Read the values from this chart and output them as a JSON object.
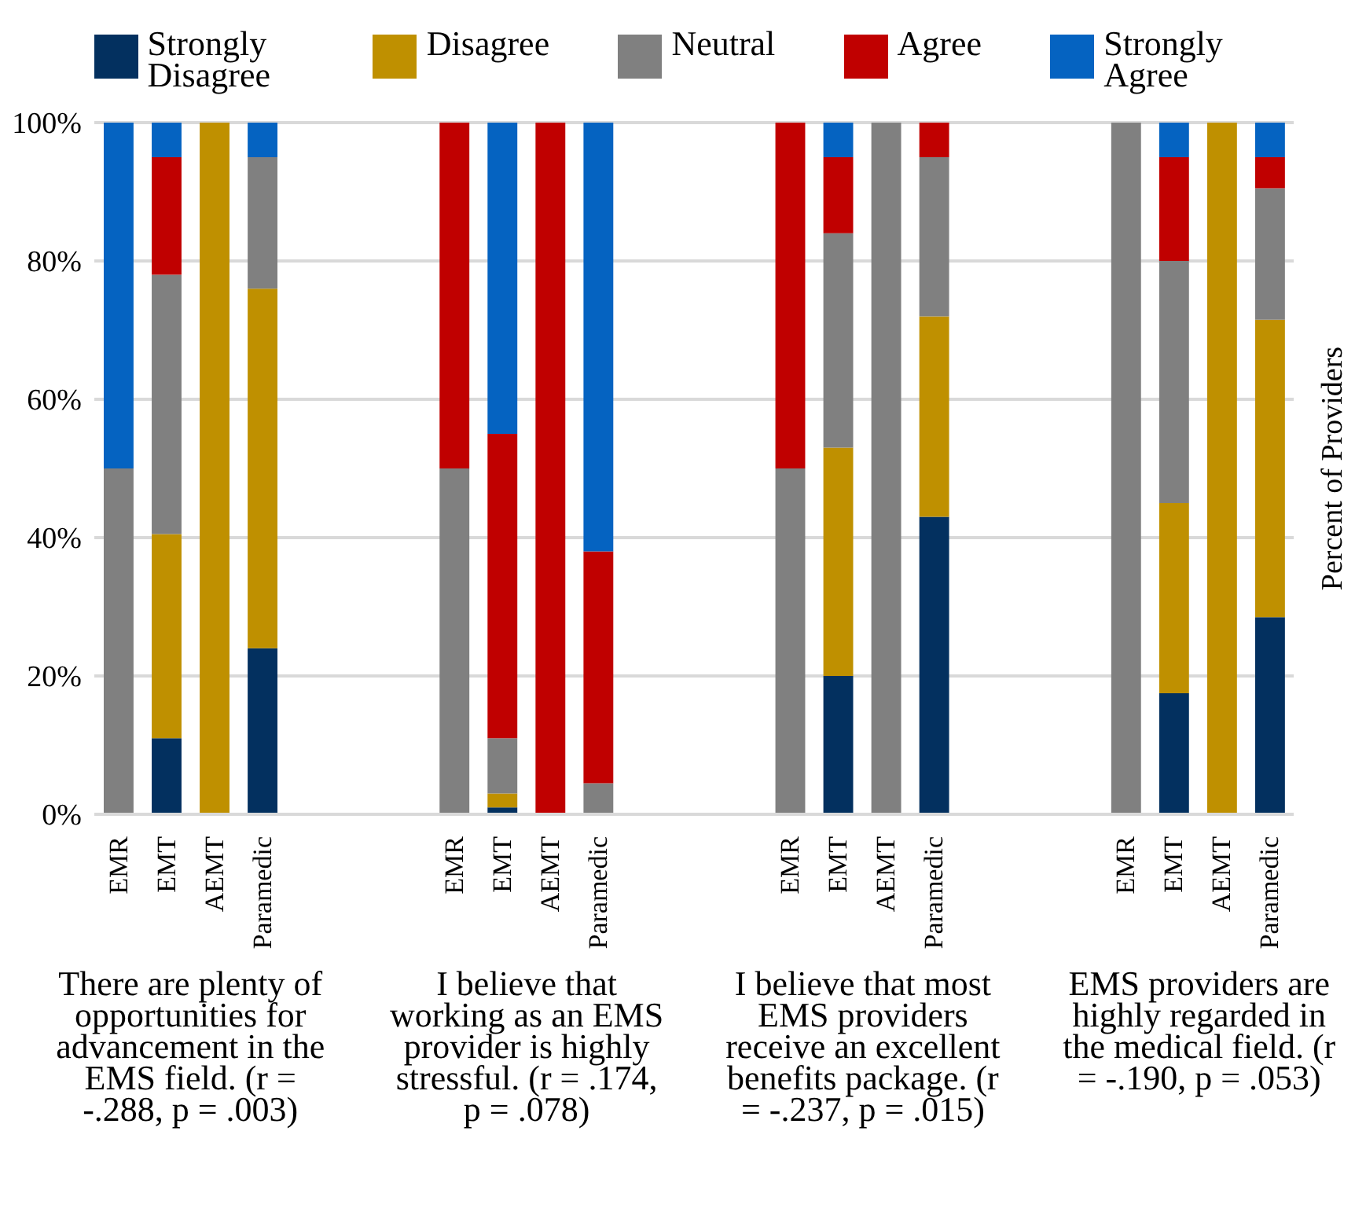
{
  "chart_data": {
    "type": "bar",
    "stacked": true,
    "ylabel": "Percent of Providers",
    "categories": [
      "EMR",
      "EMT",
      "AEMT",
      "Paramedic",
      null,
      null,
      null,
      "EMR",
      "EMT",
      "AEMT",
      "Paramedic",
      null,
      null,
      null,
      "EMR",
      "EMT",
      "AEMT",
      "Paramedic",
      null,
      null,
      null,
      "EMR",
      "EMT",
      "AEMT",
      "Paramedic"
    ],
    "series": [
      {
        "name": "Strongly Disagree",
        "color": "#03305f",
        "values": [
          0,
          11,
          0,
          24,
          null,
          null,
          null,
          0,
          1,
          0,
          0,
          null,
          null,
          null,
          0,
          20,
          0,
          43,
          null,
          null,
          null,
          0,
          17.5,
          0,
          28.5
        ]
      },
      {
        "name": "Disagree",
        "color": "#bf9000",
        "values": [
          0,
          29.5,
          100,
          52,
          null,
          null,
          null,
          0,
          2,
          0,
          0,
          null,
          null,
          null,
          0,
          33,
          0,
          29,
          null,
          null,
          null,
          0,
          27.5,
          100,
          43
        ]
      },
      {
        "name": "Neutral",
        "color": "#808080",
        "values": [
          50,
          37.5,
          0,
          19,
          null,
          null,
          null,
          50,
          8,
          0,
          4.5,
          null,
          null,
          null,
          50,
          31,
          100,
          23,
          null,
          null,
          null,
          100,
          35,
          0,
          19
        ]
      },
      {
        "name": "Agree",
        "color": "#c00000",
        "values": [
          0,
          17,
          0,
          0,
          null,
          null,
          null,
          50,
          44,
          100,
          33.5,
          null,
          null,
          null,
          50,
          11,
          0,
          5,
          null,
          null,
          null,
          0,
          15,
          0,
          4.5
        ]
      },
      {
        "name": "Strongly Agree",
        "color": "#0563c1",
        "values": [
          50,
          5,
          0,
          5,
          null,
          null,
          null,
          0,
          45,
          0,
          62,
          null,
          null,
          null,
          0,
          5,
          0,
          0,
          null,
          null,
          null,
          0,
          5,
          0,
          5
        ]
      }
    ],
    "ylim": [
      0,
      100
    ],
    "yticks": [
      {
        "value": 0,
        "label": "0%"
      },
      {
        "value": 20,
        "label": "20%"
      },
      {
        "value": 40,
        "label": "40%"
      },
      {
        "value": 60,
        "label": "60%"
      },
      {
        "value": 80,
        "label": "80%"
      },
      {
        "value": 100,
        "label": "100%"
      }
    ],
    "grid": "y",
    "legend": "top",
    "annotations": [
      "There are plenty of opportunities for advancement in the EMS field. (r = -.288, p = .003)",
      "I believe that working as an EMS provider is highly stressful. (r = .174, p = .078)",
      "I believe that most EMS providers receive an excellent benefits package. (r = -.237, p = .015)",
      "EMS providers are highly regarded in the medical field. (r = -.190, p = .053)"
    ]
  }
}
